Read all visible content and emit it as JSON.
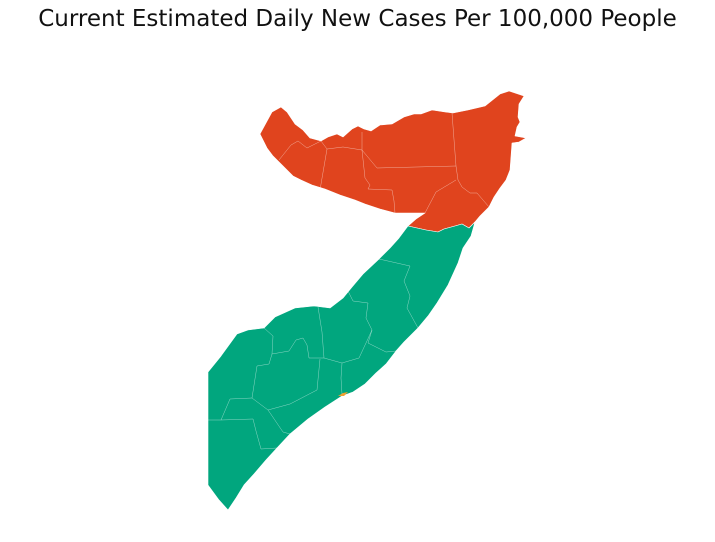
{
  "title": "Current Estimated Daily New Cases Per 100,000 People",
  "colors": {
    "high": "#e0441e",
    "low": "#01a67e",
    "small": "#f0a030",
    "background": "#ffffff"
  },
  "regions": [
    {
      "name": "north",
      "level": "high"
    },
    {
      "name": "south",
      "level": "low"
    }
  ]
}
